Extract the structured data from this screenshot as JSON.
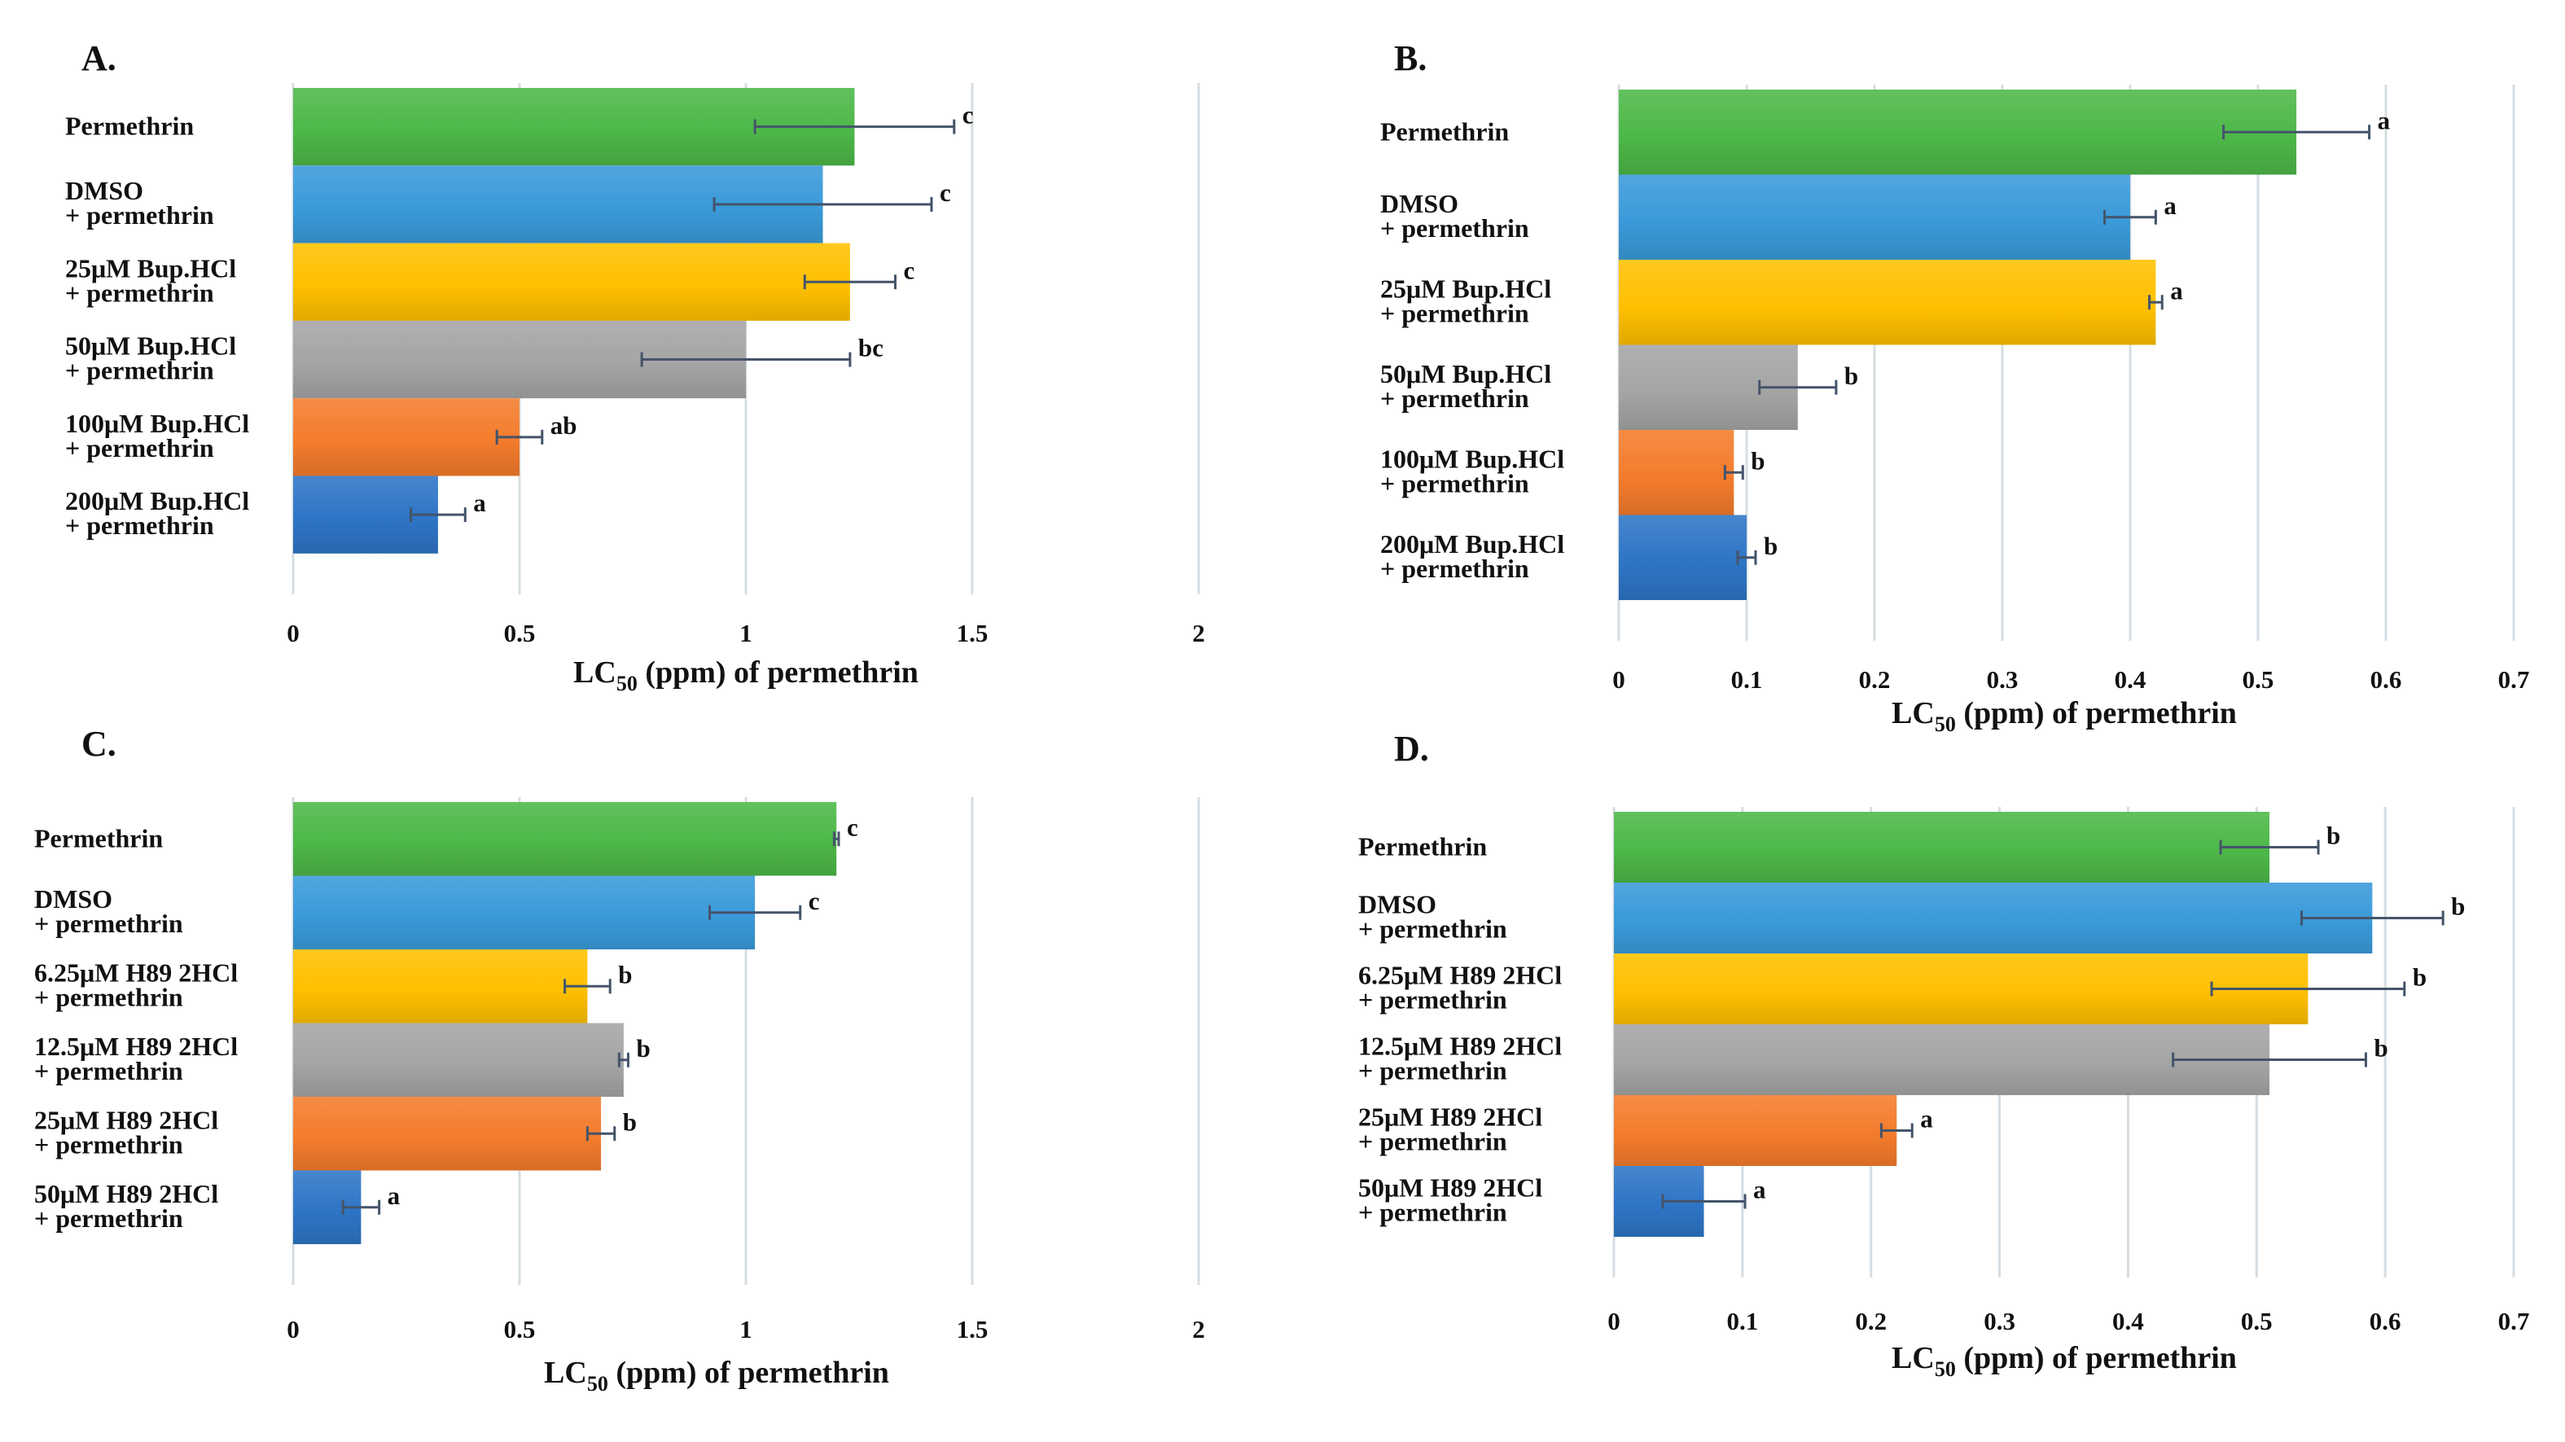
{
  "chart_data": [
    {
      "type": "bar",
      "orientation": "horizontal",
      "panel_label": "A.",
      "categories": [
        [
          "Permethrin"
        ],
        [
          "DMSO",
          "+ permethrin"
        ],
        [
          "25μM Bup.HCl",
          "+ permethrin"
        ],
        [
          "50μM Bup.HCl",
          "+ permethrin"
        ],
        [
          "100μM Bup.HCl",
          "+ permethrin"
        ],
        [
          "200μM Bup.HCl",
          "+ permethrin"
        ]
      ],
      "values": [
        1.24,
        1.17,
        1.23,
        1.0,
        0.5,
        0.32
      ],
      "error": [
        0.22,
        0.24,
        0.1,
        0.23,
        0.05,
        0.06
      ],
      "significance": [
        "c",
        "c",
        "c",
        "bc",
        "ab",
        "a"
      ],
      "bar_colors": [
        "#4db848",
        "#3a9ad9",
        "#ffc000",
        "#a5a5a5",
        "#f47c2c",
        "#2e75c6"
      ],
      "xlim": [
        0,
        2
      ],
      "xticks": [
        "0",
        "0.5",
        "1",
        "1.5",
        "2"
      ],
      "xlabel": {
        "pre": "LC",
        "sub": "50",
        "post": " (ppm) of permethrin"
      }
    },
    {
      "type": "bar",
      "orientation": "horizontal",
      "panel_label": "B.",
      "categories": [
        [
          "Permethrin"
        ],
        [
          "DMSO",
          "+ permethrin"
        ],
        [
          "25μM Bup.HCl",
          "+ permethrin"
        ],
        [
          "50μM Bup.HCl",
          "+ permethrin"
        ],
        [
          "100μM Bup.HCl",
          "+ permethrin"
        ],
        [
          "200μM Bup.HCl",
          "+ permethrin"
        ]
      ],
      "values": [
        0.53,
        0.4,
        0.42,
        0.14,
        0.09,
        0.1
      ],
      "error": [
        0.057,
        0.02,
        0.005,
        0.03,
        0.007,
        0.007
      ],
      "significance": [
        "a",
        "a",
        "a",
        "b",
        "b",
        "b"
      ],
      "bar_colors": [
        "#4db848",
        "#3a9ad9",
        "#ffc000",
        "#a5a5a5",
        "#f47c2c",
        "#2e75c6"
      ],
      "xlim": [
        0,
        0.7
      ],
      "xticks": [
        "0",
        "0.1",
        "0.2",
        "0.3",
        "0.4",
        "0.5",
        "0.6",
        "0.7"
      ],
      "xlabel": {
        "pre": "LC",
        "sub": "50",
        "post": " (ppm) of permethrin"
      }
    },
    {
      "type": "bar",
      "orientation": "horizontal",
      "panel_label": "C.",
      "categories": [
        [
          "Permethrin"
        ],
        [
          "DMSO",
          "+ permethrin"
        ],
        [
          "6.25μM H89 2HCl",
          "+ permethrin"
        ],
        [
          "12.5μM H89 2HCl",
          "+ permethrin"
        ],
        [
          "25μM H89 2HCl",
          "+ permethrin"
        ],
        [
          "50μM H89 2HCl",
          "+ permethrin"
        ]
      ],
      "values": [
        1.2,
        1.02,
        0.65,
        0.73,
        0.68,
        0.15
      ],
      "error": [
        0.005,
        0.1,
        0.05,
        0.01,
        0.03,
        0.04
      ],
      "significance": [
        "c",
        "c",
        "b",
        "b",
        "b",
        "a"
      ],
      "bar_colors": [
        "#4db848",
        "#3a9ad9",
        "#ffc000",
        "#a5a5a5",
        "#f47c2c",
        "#2e75c6"
      ],
      "xlim": [
        0,
        2
      ],
      "xticks": [
        "0",
        "0.5",
        "1",
        "1.5",
        "2"
      ],
      "xlabel": {
        "pre": "LC",
        "sub": "50",
        "post": " (ppm) of permethrin"
      }
    },
    {
      "type": "bar",
      "orientation": "horizontal",
      "panel_label": "D.",
      "categories": [
        [
          "Permethrin"
        ],
        [
          "DMSO",
          "+ permethrin"
        ],
        [
          "6.25μM H89 2HCl",
          "+ permethrin"
        ],
        [
          "12.5μM H89 2HCl",
          "+ permethrin"
        ],
        [
          "25μM H89 2HCl",
          "+ permethrin"
        ],
        [
          "50μM H89 2HCl",
          "+ permethrin"
        ]
      ],
      "values": [
        0.51,
        0.59,
        0.54,
        0.51,
        0.22,
        0.07
      ],
      "error": [
        0.038,
        0.055,
        0.075,
        0.075,
        0.012,
        0.032
      ],
      "significance": [
        "b",
        "b",
        "b",
        "b",
        "a",
        "a"
      ],
      "bar_colors": [
        "#4db848",
        "#3a9ad9",
        "#ffc000",
        "#a5a5a5",
        "#f47c2c",
        "#2e75c6"
      ],
      "xlim": [
        0,
        0.7
      ],
      "xticks": [
        "0",
        "0.1",
        "0.2",
        "0.3",
        "0.4",
        "0.5",
        "0.6",
        "0.7"
      ],
      "xlabel": {
        "pre": "LC",
        "sub": "50",
        "post": " (ppm) of permethrin"
      }
    }
  ]
}
